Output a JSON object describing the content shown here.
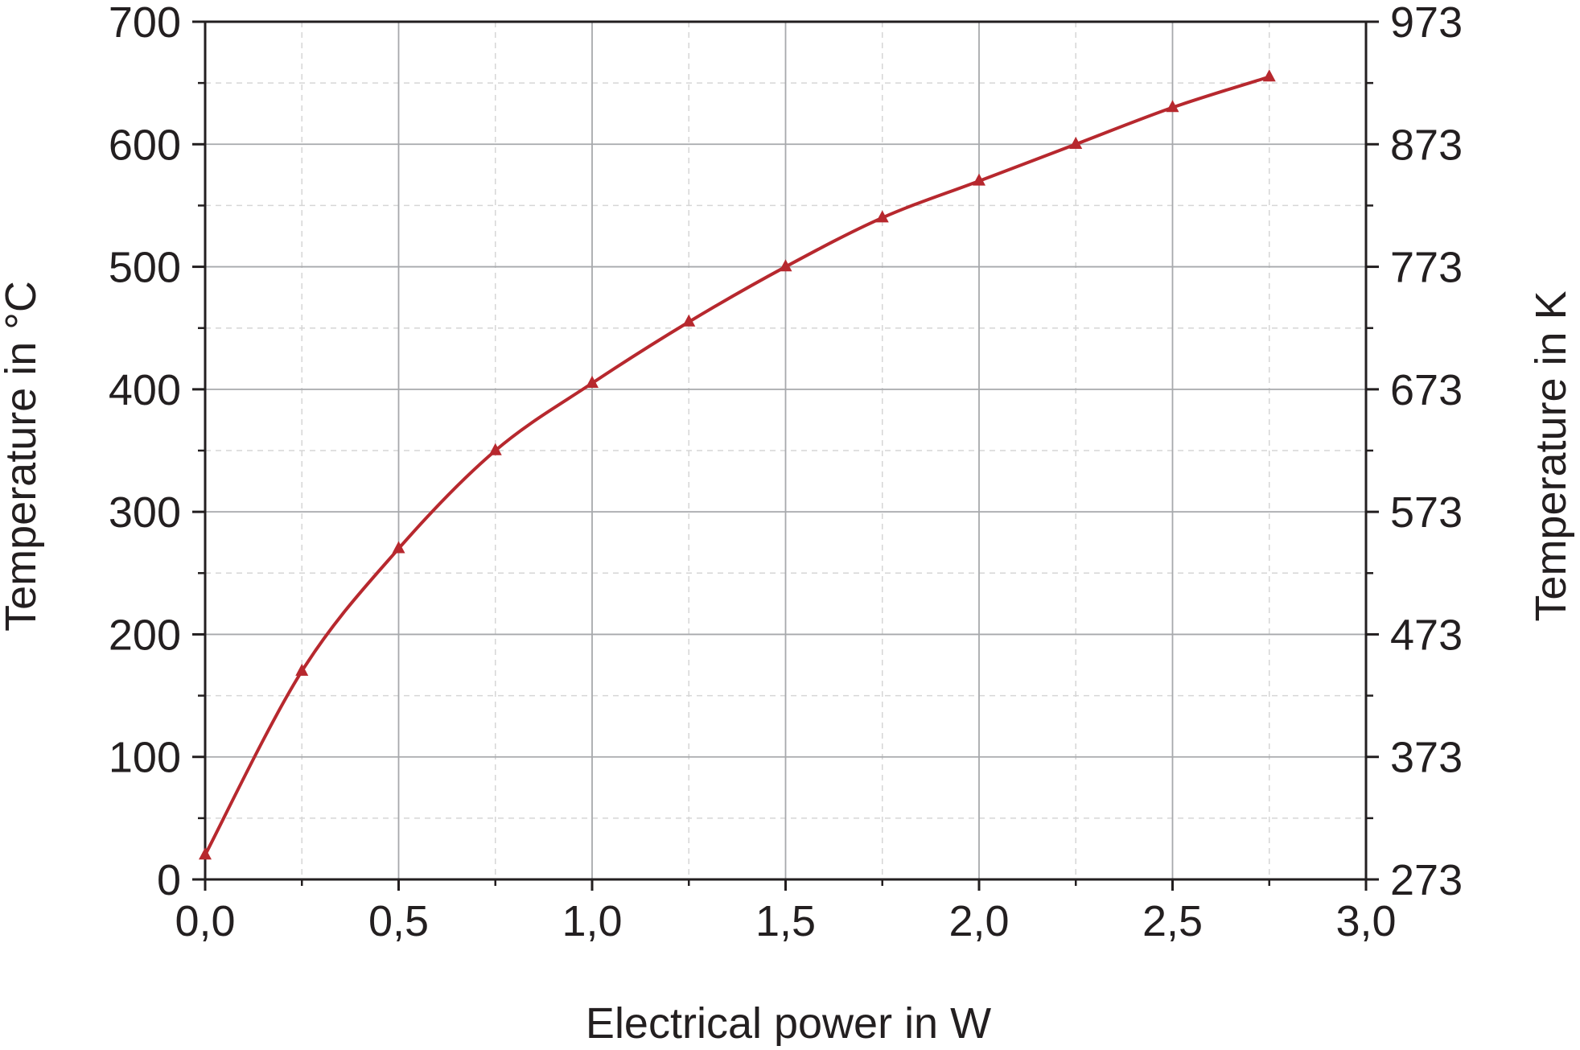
{
  "chart_data": {
    "type": "line",
    "xlabel": "Electrical power in W",
    "ylabel": "Temperature in °C",
    "y2label": "Temperature in K",
    "xlim": [
      0,
      3.0
    ],
    "ylim": [
      0,
      700
    ],
    "y2lim": [
      273,
      973
    ],
    "x_ticks": [
      "0,0",
      "0,5",
      "1,0",
      "1,5",
      "2,0",
      "2,5",
      "3,0"
    ],
    "y_ticks": [
      "0",
      "100",
      "200",
      "300",
      "400",
      "500",
      "600",
      "700"
    ],
    "y2_ticks": [
      "273",
      "373",
      "473",
      "573",
      "673",
      "773",
      "873",
      "973"
    ],
    "grid": true,
    "series": [
      {
        "color": "#b7282e",
        "marker": "triangle",
        "x": [
          0.0,
          0.25,
          0.5,
          0.75,
          1.0,
          1.25,
          1.5,
          1.75,
          2.0,
          2.25,
          2.5,
          2.75
        ],
        "y": [
          20,
          170,
          270,
          350,
          405,
          455,
          500,
          540,
          570,
          600,
          630,
          655
        ]
      }
    ]
  }
}
